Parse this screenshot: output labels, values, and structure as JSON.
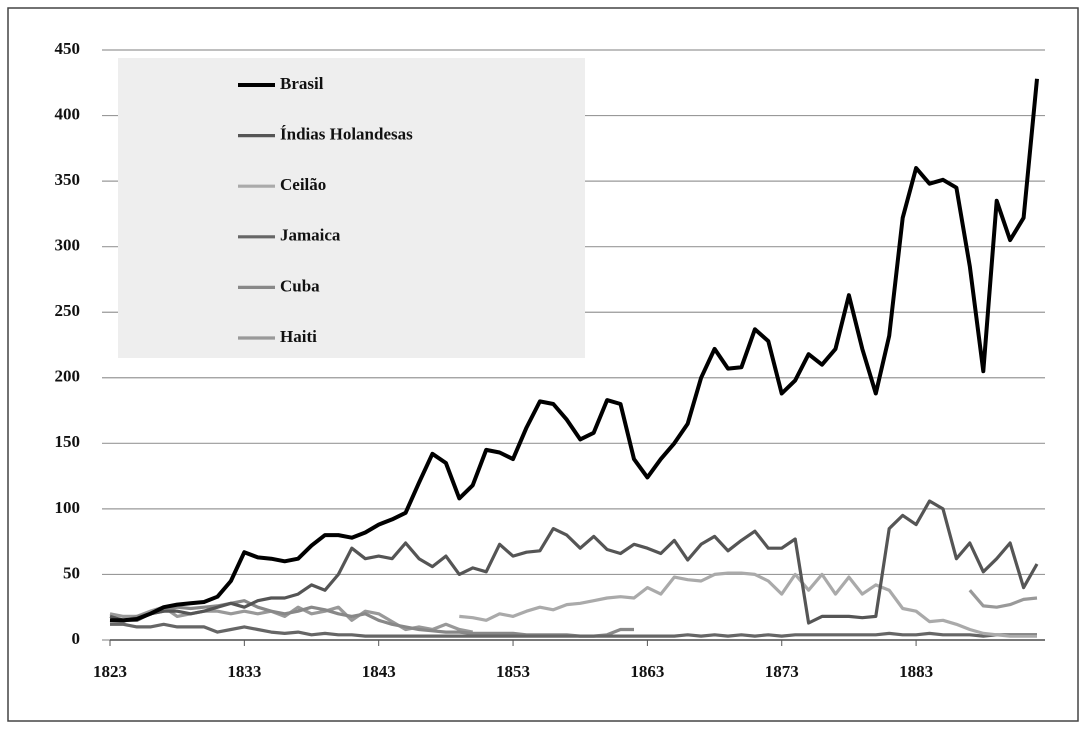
{
  "chart_data": {
    "type": "line",
    "x": [
      1823,
      1824,
      1825,
      1826,
      1827,
      1828,
      1829,
      1830,
      1831,
      1832,
      1833,
      1834,
      1835,
      1836,
      1837,
      1838,
      1839,
      1840,
      1841,
      1842,
      1843,
      1844,
      1845,
      1846,
      1847,
      1848,
      1849,
      1850,
      1851,
      1852,
      1853,
      1854,
      1855,
      1856,
      1857,
      1858,
      1859,
      1860,
      1861,
      1862,
      1863,
      1864,
      1865,
      1866,
      1867,
      1868,
      1869,
      1870,
      1871,
      1872,
      1873,
      1874,
      1875,
      1876,
      1877,
      1878,
      1879,
      1880,
      1881,
      1882,
      1883,
      1884,
      1885,
      1886,
      1887,
      1888,
      1889,
      1890,
      1891,
      1892
    ],
    "xlim": [
      1823,
      1892
    ],
    "xticks": [
      1823,
      1833,
      1843,
      1853,
      1863,
      1873,
      1883
    ],
    "ylim": [
      0,
      450
    ],
    "yticks": [
      0,
      50,
      100,
      150,
      200,
      250,
      300,
      350,
      400,
      450
    ],
    "grid": true,
    "series": [
      {
        "name": "Brasil",
        "color": "#000000",
        "values": [
          15,
          15,
          16,
          20,
          25,
          27,
          28,
          29,
          33,
          45,
          67,
          63,
          62,
          60,
          62,
          72,
          80,
          80,
          78,
          82,
          88,
          92,
          97,
          120,
          142,
          135,
          108,
          118,
          145,
          143,
          138,
          162,
          182,
          180,
          168,
          153,
          158,
          183,
          180,
          138,
          124,
          138,
          150,
          165,
          200,
          222,
          207,
          208,
          237,
          228,
          188,
          198,
          218,
          210,
          222,
          263,
          222,
          188,
          232,
          322,
          360,
          348,
          351,
          345,
          285,
          205,
          335,
          305,
          322,
          428
        ]
      },
      {
        "name": "Índias Holandesas",
        "color": "#555555",
        "values": [
          18,
          15,
          15,
          20,
          22,
          22,
          20,
          22,
          25,
          28,
          25,
          30,
          32,
          32,
          35,
          42,
          38,
          50,
          70,
          62,
          64,
          62,
          74,
          62,
          56,
          64,
          50,
          55,
          52,
          73,
          64,
          67,
          68,
          85,
          80,
          70,
          79,
          69,
          66,
          73,
          70,
          66,
          76,
          61,
          73,
          79,
          68,
          76,
          83,
          70,
          70,
          77,
          13,
          18,
          18,
          18,
          17,
          18,
          85,
          95,
          88,
          106,
          100,
          62,
          74,
          52,
          62,
          74,
          40,
          58
        ]
      },
      {
        "name": "Ceilão",
        "color": "#aaaaaa",
        "values": [
          null,
          null,
          null,
          null,
          null,
          null,
          null,
          null,
          null,
          null,
          null,
          null,
          null,
          null,
          null,
          null,
          null,
          null,
          null,
          null,
          null,
          null,
          null,
          null,
          null,
          null,
          18,
          17,
          15,
          20,
          18,
          22,
          25,
          23,
          27,
          28,
          30,
          32,
          33,
          32,
          40,
          35,
          48,
          46,
          45,
          50,
          51,
          51,
          50,
          45,
          35,
          50,
          38,
          50,
          35,
          48,
          35,
          42,
          38,
          24,
          22,
          14,
          15,
          12,
          8,
          5,
          4,
          3,
          3,
          3
        ]
      },
      {
        "name": "Jamaica",
        "color": "#666666",
        "values": [
          12,
          12,
          10,
          10,
          12,
          10,
          10,
          10,
          6,
          8,
          10,
          8,
          6,
          5,
          6,
          4,
          5,
          4,
          4,
          3,
          3,
          3,
          3,
          3,
          3,
          3,
          3,
          3,
          3,
          3,
          3,
          3,
          3,
          3,
          3,
          3,
          3,
          3,
          3,
          3,
          3,
          3,
          3,
          4,
          3,
          4,
          3,
          4,
          3,
          4,
          3,
          4,
          4,
          4,
          4,
          4,
          4,
          4,
          5,
          4,
          4,
          5,
          4,
          4,
          4,
          3,
          4,
          4,
          4,
          4
        ]
      },
      {
        "name": "Cuba",
        "color": "#888888",
        "values": [
          15,
          14,
          18,
          20,
          22,
          25,
          24,
          25,
          26,
          28,
          30,
          25,
          22,
          20,
          22,
          25,
          23,
          20,
          18,
          20,
          15,
          12,
          10,
          8,
          7,
          6,
          6,
          5,
          5,
          5,
          5,
          4,
          4,
          4,
          4,
          3,
          3,
          4,
          8,
          8,
          null,
          null,
          null,
          null,
          null,
          null,
          null,
          null,
          null,
          null,
          null,
          null,
          null,
          null,
          null,
          null,
          null,
          null,
          null,
          null,
          null,
          null,
          null,
          null,
          null,
          null,
          null,
          null,
          null,
          null
        ]
      },
      {
        "name": "Haiti",
        "color": "#999999",
        "values": [
          20,
          18,
          18,
          22,
          25,
          18,
          20,
          22,
          22,
          20,
          22,
          20,
          22,
          18,
          25,
          20,
          22,
          25,
          15,
          22,
          20,
          14,
          8,
          10,
          8,
          12,
          8,
          6,
          null,
          null,
          null,
          null,
          null,
          null,
          null,
          null,
          null,
          null,
          null,
          null,
          null,
          null,
          null,
          null,
          null,
          null,
          null,
          null,
          null,
          null,
          null,
          null,
          null,
          null,
          null,
          null,
          null,
          null,
          null,
          null,
          null,
          null,
          null,
          null,
          38,
          26,
          25,
          27,
          31,
          32
        ]
      }
    ]
  }
}
